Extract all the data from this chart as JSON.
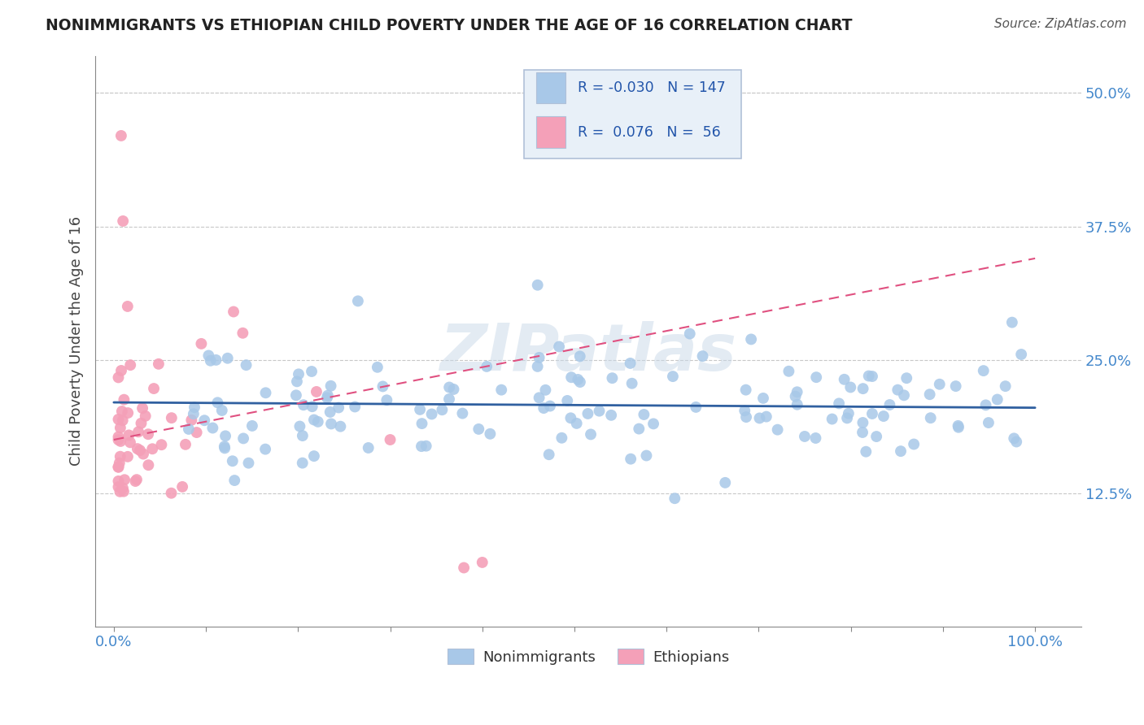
{
  "title": "NONIMMIGRANTS VS ETHIOPIAN CHILD POVERTY UNDER THE AGE OF 16 CORRELATION CHART",
  "source": "Source: ZipAtlas.com",
  "ylabel": "Child Poverty Under the Age of 16",
  "xlim": [
    -0.02,
    1.05
  ],
  "ylim": [
    0.0,
    0.535
  ],
  "yticks": [
    0.0,
    0.125,
    0.25,
    0.375,
    0.5
  ],
  "ytick_labels": [
    "",
    "12.5%",
    "25.0%",
    "37.5%",
    "50.0%"
  ],
  "xtick_labels": [
    "0.0%",
    "100.0%"
  ],
  "blue_R": -0.03,
  "blue_N": 147,
  "pink_R": 0.076,
  "pink_N": 56,
  "blue_color": "#a8c8e8",
  "pink_color": "#f4a0b8",
  "blue_line_color": "#3060a0",
  "pink_line_color": "#e05080",
  "blue_trend": [
    0.0,
    0.21,
    1.0,
    0.205
  ],
  "pink_trend": [
    0.0,
    0.175,
    1.0,
    0.345
  ],
  "watermark": "ZIPatlas",
  "background_color": "#ffffff",
  "grid_color": "#c8c8c8",
  "legend_box_color": "#e8f0f8",
  "legend_border_color": "#b0c0d8"
}
